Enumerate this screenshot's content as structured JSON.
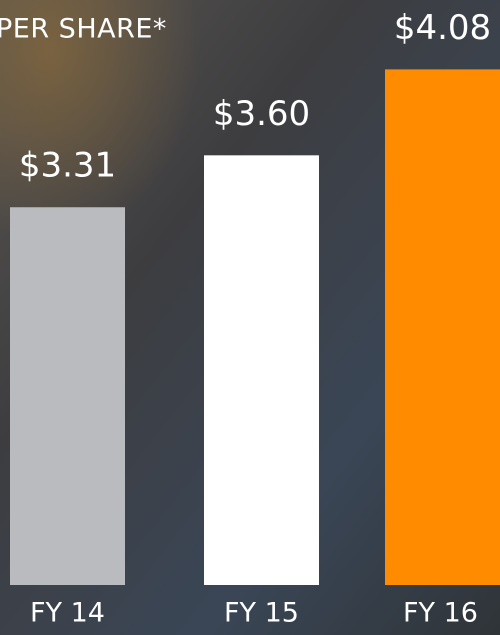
{
  "chart_data": {
    "type": "bar",
    "title": "PER SHARE*",
    "categories": [
      "FY 14",
      "FY 15",
      "FY 16"
    ],
    "values": [
      3.31,
      3.6,
      4.08
    ],
    "value_labels": [
      "$3.31",
      "$3.60",
      "$4.08"
    ],
    "colors": [
      "#b9bbbe",
      "#ffffff",
      "#ff8c00"
    ],
    "ylim": [
      1.2,
      4.3
    ]
  }
}
